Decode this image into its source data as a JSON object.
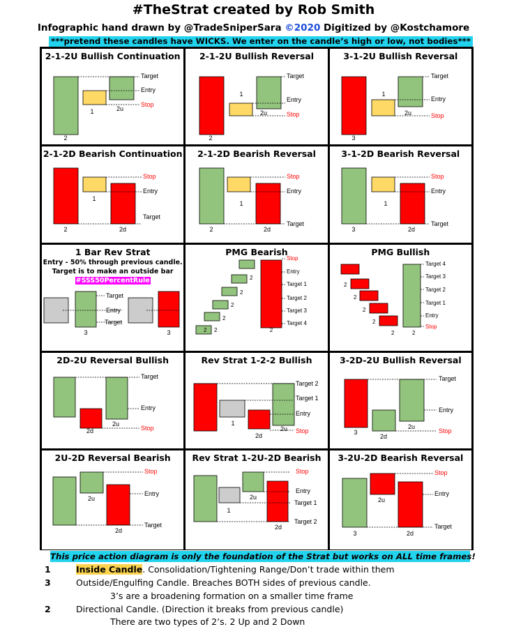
{
  "header": {
    "title": "#TheStrat created by Rob Smith",
    "credit_pre": "Infographic hand drawn by @TradeSniperSara ",
    "credit_copy": "©2020",
    "credit_post": " Digitized by @Kostchamore",
    "banner": "***pretend these candles have WICKS. We enter on the candle’s high or low, not bodies***"
  },
  "colors": {
    "green": "#93c47d",
    "red": "#ff0000",
    "yellow": "#ffd966",
    "gray": "#cccccc",
    "cyan": "#22d3ee",
    "magenta": "#ff00ff"
  },
  "cells": [
    {
      "title": "2-1-2U Bullish Continuation"
    },
    {
      "title": "2-1-2U Bullish Reversal"
    },
    {
      "title": "3-1-2U Bullish Reversal"
    },
    {
      "title": "2-1-2D Bearish Continuation"
    },
    {
      "title": "2-1-2D Bearish Reversal"
    },
    {
      "title": "3-1-2D Bearish Reversal"
    },
    {
      "title": "1 Bar Rev Strat",
      "note1": "Entry - 50% through previous candle.",
      "note2": "Target is to make an outside bar",
      "hashtag": "#SSS50PercentRule"
    },
    {
      "title": "PMG Bearish"
    },
    {
      "title": "PMG Bullish"
    },
    {
      "title": "2D-2U Reversal Bullish"
    },
    {
      "title": "Rev Strat 1-2-2 Bullish"
    },
    {
      "title": "3-2D-2U Bullish Reversal"
    },
    {
      "title": "2U-2D Reversal Bearish"
    },
    {
      "title": "Rev Strat 1-2U-2D Bearish"
    },
    {
      "title": "3-2U-2D Bearish Reversal"
    }
  ],
  "labels": {
    "target": "Target",
    "entry": "Entry",
    "stop": "Stop",
    "target1": "Target 1",
    "target2": "Target 2",
    "target3": "Target 3",
    "target4": "Target 4",
    "n1": "1",
    "n2": "2",
    "n3": "3",
    "n2u": "2u",
    "n2d": "2d"
  },
  "footer": {
    "banner": "This price action diagram is only the foundation of the Strat but works on ALL time frames!",
    "items": [
      {
        "num": "1",
        "label": "Inside Candle",
        "text": ". Consolidation/Tightening Range/Don’t trade within them"
      },
      {
        "num": "3",
        "text": "Outside/Engulfing Candle. Breaches BOTH sides of previous candle."
      },
      {
        "num": "",
        "text": "3’s are a broadening formation on a smaller time frame"
      },
      {
        "num": "2",
        "text": "Directional Candle. (Direction it breaks from previous candle)"
      },
      {
        "num": "",
        "text": "There are two types of 2’s. 2 Up and 2 Down"
      }
    ]
  }
}
